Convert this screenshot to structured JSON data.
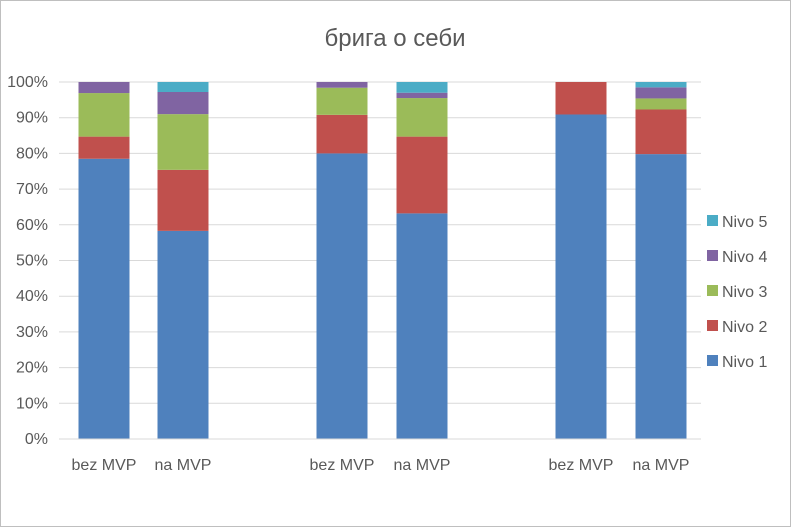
{
  "chart_data": {
    "type": "bar",
    "stacked": true,
    "percent": true,
    "title": "брига о себи",
    "xlabel": "",
    "ylabel": "",
    "ylim": [
      0,
      100
    ],
    "yticks": [
      "0%",
      "10%",
      "20%",
      "30%",
      "40%",
      "50%",
      "60%",
      "70%",
      "80%",
      "90%",
      "100%"
    ],
    "categories": [
      "bez MVP",
      "na MVP",
      "bez MVP",
      "na MVP",
      "bez MVP",
      "na MVP"
    ],
    "grid": true,
    "legend": "right",
    "series": [
      {
        "name": "Nivo 1",
        "color": "#4f81bd",
        "values": [
          78.5,
          58.3,
          80.0,
          63.2,
          90.9,
          79.8
        ]
      },
      {
        "name": "Nivo 2",
        "color": "#c0504d",
        "values": [
          6.2,
          17.1,
          10.8,
          21.5,
          9.1,
          12.5
        ]
      },
      {
        "name": "Nivo 3",
        "color": "#9bbb59",
        "values": [
          12.2,
          15.6,
          7.6,
          10.8,
          0,
          3.1
        ]
      },
      {
        "name": "Nivo 4",
        "color": "#8064a2",
        "values": [
          3.1,
          6.2,
          1.6,
          1.5,
          0,
          3.1
        ]
      },
      {
        "name": "Nivo 5",
        "color": "#4bacc6",
        "values": [
          0,
          2.8,
          0,
          3.0,
          0,
          1.5
        ]
      }
    ]
  }
}
